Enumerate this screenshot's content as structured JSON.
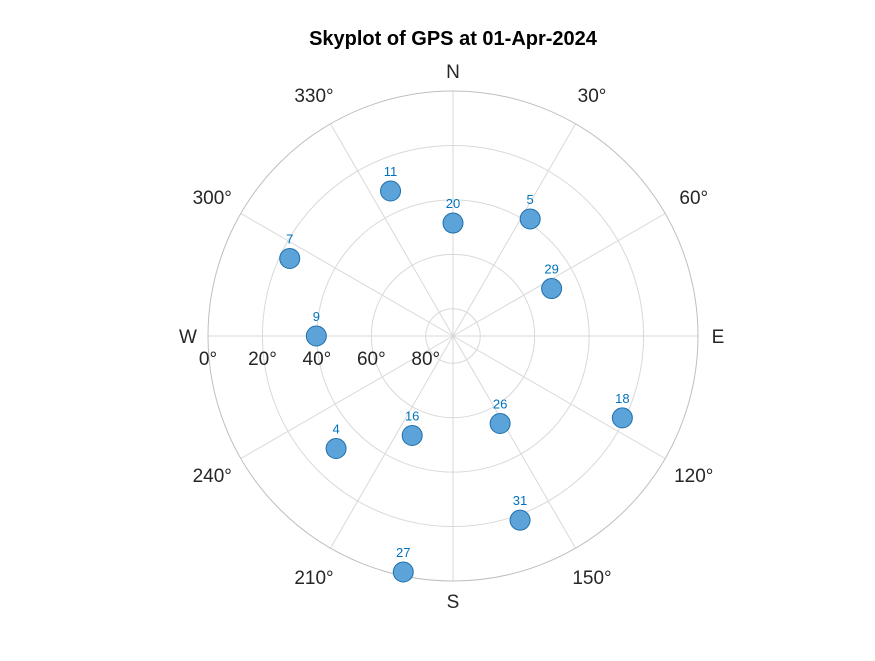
{
  "chart_data": {
    "type": "scatter",
    "subtype": "polar-skyplot",
    "title": "Skyplot of GPS at 01-Apr-2024",
    "directions": [
      {
        "label": "N",
        "azimuth": 0
      },
      {
        "label": "E",
        "azimuth": 90
      },
      {
        "label": "S",
        "azimuth": 180
      },
      {
        "label": "W",
        "azimuth": 270
      }
    ],
    "azimuth_ticks": [
      {
        "label": "30°",
        "azimuth": 30
      },
      {
        "label": "60°",
        "azimuth": 60
      },
      {
        "label": "120°",
        "azimuth": 120
      },
      {
        "label": "150°",
        "azimuth": 150
      },
      {
        "label": "210°",
        "azimuth": 210
      },
      {
        "label": "240°",
        "azimuth": 240
      },
      {
        "label": "300°",
        "azimuth": 300
      },
      {
        "label": "330°",
        "azimuth": 330
      }
    ],
    "elevation_ticks": [
      {
        "label": "0°",
        "elevation": 0
      },
      {
        "label": "20°",
        "elevation": 20
      },
      {
        "label": "40°",
        "elevation": 40
      },
      {
        "label": "60°",
        "elevation": 60
      },
      {
        "label": "80°",
        "elevation": 80
      }
    ],
    "elevation_range": [
      0,
      90
    ],
    "azimuth_direction": "clockwise from north",
    "grid": true,
    "colors": {
      "marker_fill": "#5ba3d9",
      "marker_edge": "#1f6fab",
      "prn_text": "#0072bd",
      "grid": "#d9d9d9",
      "outer_circle": "#bfbfbf",
      "text": "#262626"
    },
    "satellites": [
      {
        "prn": "11",
        "azimuth": 336.7,
        "elevation": 32.0
      },
      {
        "prn": "20",
        "azimuth": 0.0,
        "elevation": 48.5
      },
      {
        "prn": "5",
        "azimuth": 33.4,
        "elevation": 38.5
      },
      {
        "prn": "29",
        "azimuth": 64.3,
        "elevation": 49.8
      },
      {
        "prn": "7",
        "azimuth": 295.4,
        "elevation": 23.6
      },
      {
        "prn": "9",
        "azimuth": 270.0,
        "elevation": 39.8
      },
      {
        "prn": "18",
        "azimuth": 115.8,
        "elevation": 20.9
      },
      {
        "prn": "26",
        "azimuth": 151.7,
        "elevation": 53.5
      },
      {
        "prn": "4",
        "azimuth": 226.1,
        "elevation": 30.4
      },
      {
        "prn": "16",
        "azimuth": 202.3,
        "elevation": 50.5
      },
      {
        "prn": "31",
        "azimuth": 160.0,
        "elevation": 18.0
      },
      {
        "prn": "27",
        "azimuth": 191.9,
        "elevation": 1.4
      }
    ]
  }
}
